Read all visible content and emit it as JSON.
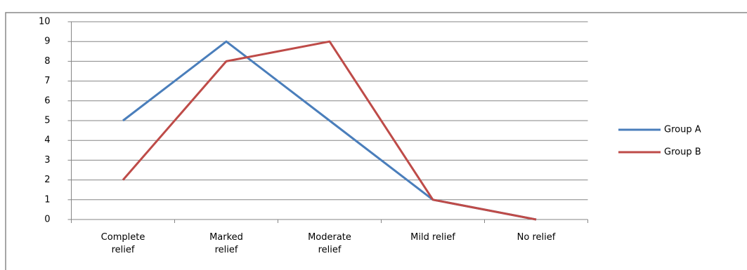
{
  "chart_data": {
    "type": "line",
    "categories": [
      "Complete relief",
      "Marked relief",
      "Moderate relief",
      "Mild relief",
      "No relief"
    ],
    "series": [
      {
        "name": "Group A",
        "color": "#4a7ebb",
        "values": [
          5,
          9,
          5,
          1,
          0
        ]
      },
      {
        "name": "Group B",
        "color": "#be4b48",
        "values": [
          2,
          8,
          9,
          1,
          0
        ]
      }
    ],
    "ylim": [
      0,
      10
    ],
    "yticks": [
      0,
      1,
      2,
      3,
      4,
      5,
      6,
      7,
      8,
      9,
      10
    ],
    "grid": true,
    "legend": "right"
  }
}
